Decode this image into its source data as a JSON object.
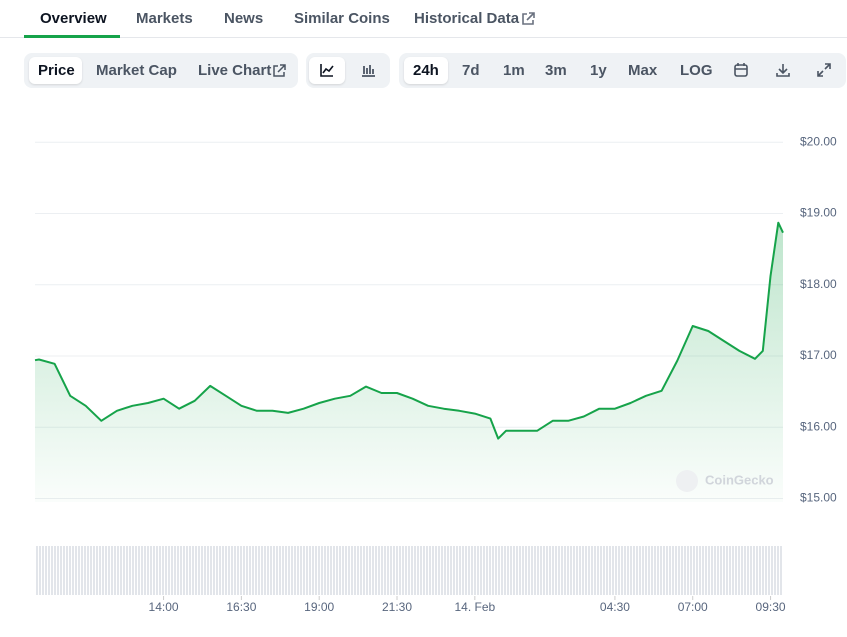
{
  "tabs": [
    "Overview",
    "Markets",
    "News",
    "Similar Coins",
    "Historical Data"
  ],
  "chart_buttons": [
    "Price",
    "Market Cap",
    "Live Chart"
  ],
  "ranges": [
    "24h",
    "7d",
    "1m",
    "3m",
    "1y",
    "Max",
    "LOG"
  ],
  "watermark": "CoinGecko",
  "chart_data": {
    "type": "line",
    "color": "#16a34a",
    "x": [
      9.87,
      10,
      10.5,
      11,
      11.5,
      12,
      12.5,
      13,
      13.5,
      14,
      14.5,
      15,
      15.5,
      16,
      16.5,
      17,
      17.5,
      18,
      18.5,
      19,
      19.5,
      20,
      20.5,
      21,
      21.5,
      22,
      22.5,
      23,
      23.5,
      24,
      24.5,
      24.75,
      25,
      25.5,
      26,
      26.5,
      27,
      27.5,
      28,
      28.5,
      29,
      29.5,
      30,
      30.5,
      31,
      31.5,
      32,
      32.5,
      33,
      33.25,
      33.5,
      33.75,
      33.9
    ],
    "values": [
      16.94,
      16.95,
      16.89,
      16.44,
      16.3,
      16.09,
      16.23,
      16.3,
      16.34,
      16.4,
      16.26,
      16.37,
      16.58,
      16.44,
      16.3,
      16.23,
      16.23,
      16.2,
      16.26,
      16.34,
      16.4,
      16.44,
      16.57,
      16.48,
      16.48,
      16.4,
      16.3,
      16.26,
      16.23,
      16.19,
      16.12,
      15.84,
      15.95,
      15.95,
      15.95,
      16.09,
      16.09,
      16.15,
      16.26,
      16.26,
      16.34,
      16.44,
      16.51,
      16.93,
      17.42,
      17.35,
      17.21,
      17.07,
      16.96,
      17.07,
      18.12,
      18.87,
      18.73
    ],
    "xlim": [
      9.87,
      33.9
    ],
    "xticks": [
      {
        "value": 14,
        "label": "14:00"
      },
      {
        "value": 16.5,
        "label": "16:30"
      },
      {
        "value": 19,
        "label": "19:00"
      },
      {
        "value": 21.5,
        "label": "21:30"
      },
      {
        "value": 24,
        "label": "14. Feb"
      },
      {
        "value": 28.5,
        "label": "04:30"
      },
      {
        "value": 31,
        "label": "07:00"
      },
      {
        "value": 33.5,
        "label": "09:30"
      }
    ],
    "ylim": [
      14.95,
      20.55
    ],
    "yticks": [
      {
        "value": 15,
        "label": "$15.00"
      },
      {
        "value": 16,
        "label": "$16.00"
      },
      {
        "value": 17,
        "label": "$17.00"
      },
      {
        "value": 18,
        "label": "$18.00"
      },
      {
        "value": 19,
        "label": "$19.00"
      },
      {
        "value": 20,
        "label": "$20.00"
      }
    ],
    "grid": true
  }
}
